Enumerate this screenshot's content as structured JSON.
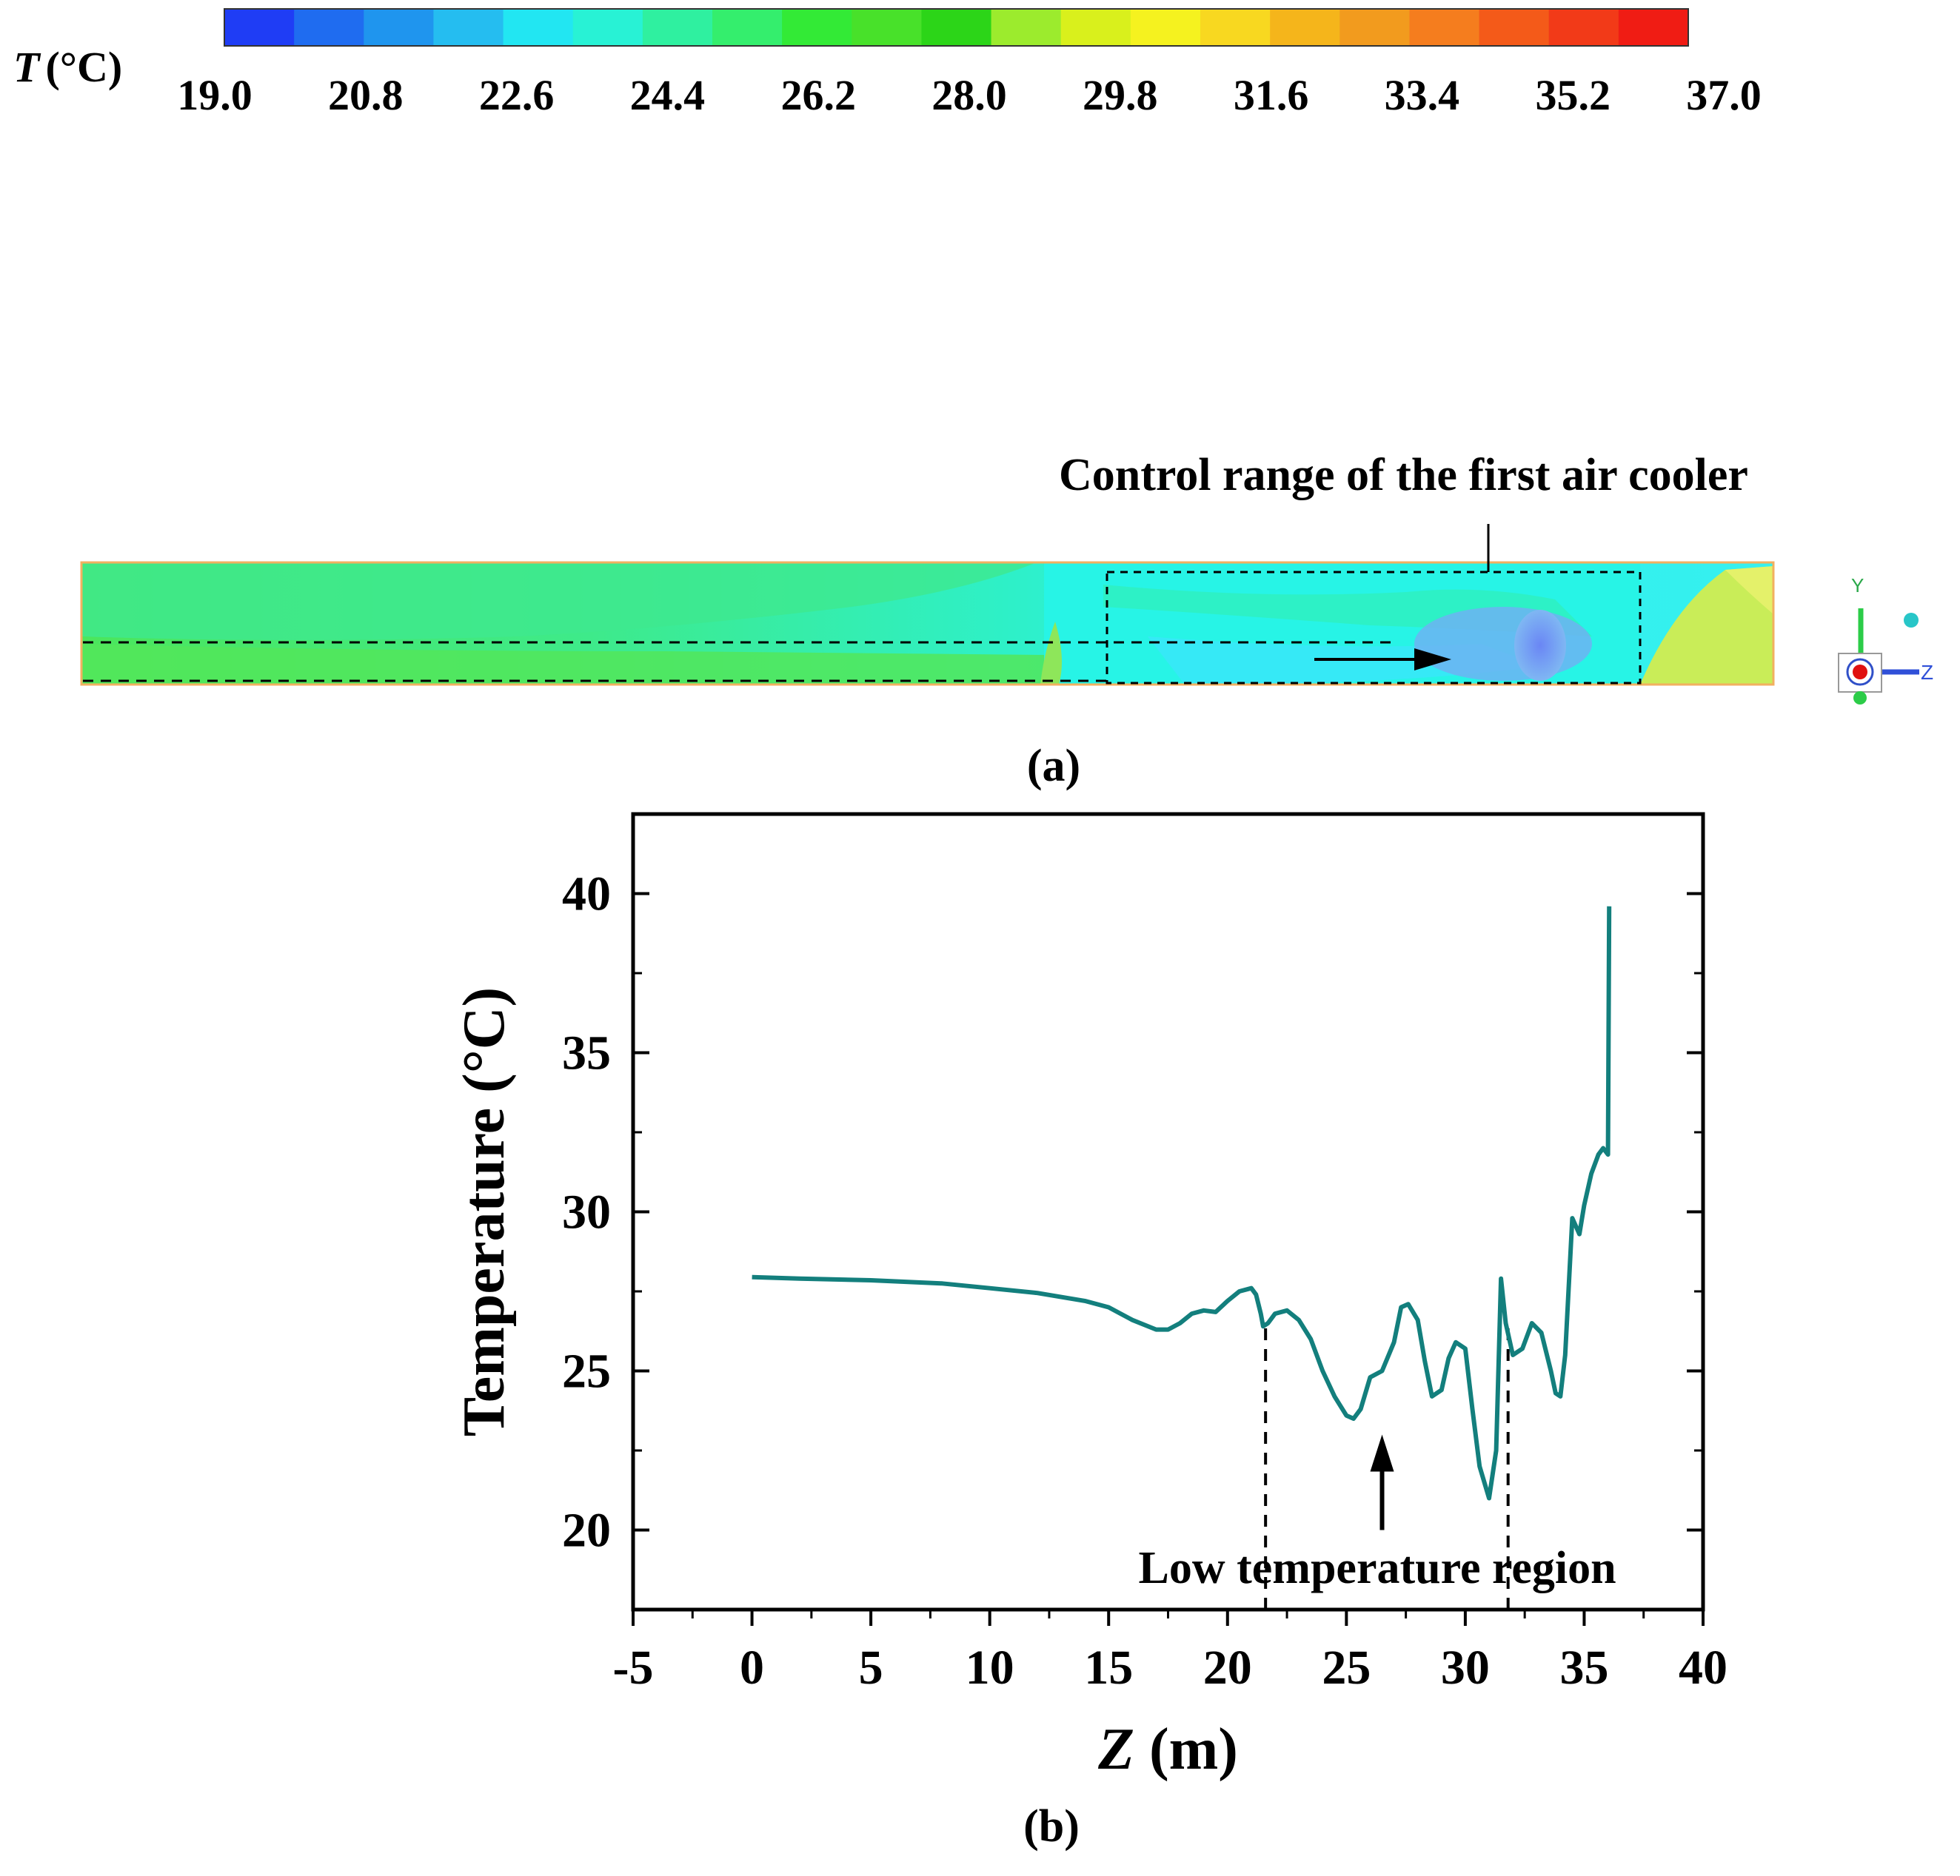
{
  "colorbar": {
    "symbol": "T",
    "unit": "(°C)",
    "ticks": [
      "19.0",
      "20.8",
      "22.6",
      "24.4",
      "26.2",
      "28.0",
      "29.8",
      "31.6",
      "33.4",
      "35.2",
      "37.0"
    ],
    "colors": [
      "#1f3df5",
      "#1f6cf0",
      "#1f95ee",
      "#25bdf0",
      "#22e6f2",
      "#28f2d5",
      "#2ff0a0",
      "#34ee6d",
      "#33ea36",
      "#48e12a",
      "#2cd518",
      "#9ceb2d",
      "#d9f01c",
      "#f5f21f",
      "#f8d820",
      "#f5b51b",
      "#f29b1e",
      "#f57d1e",
      "#f45a19",
      "#f23a18",
      "#f01c14"
    ]
  },
  "contour": {
    "annotation": "Control range of the first air cooler",
    "axis_y_label": "Y",
    "axis_z_label": "Z",
    "colors": {
      "base_green": "#46e85d",
      "cyan": "#24f5df",
      "light_cyan": "#3ff0f4",
      "blue_patch": "#6d8cf4",
      "yellow_green": "#c9ed58",
      "border_orange": "#f2b060"
    }
  },
  "panel_a_label": "(a)",
  "panel_b_label": "(b)",
  "chart_data": {
    "type": "line",
    "title": "",
    "xlabel": "Z (m)",
    "xlabel_italic_part": "Z",
    "xlabel_unit": "(m)",
    "ylabel": "Temperature (°C)",
    "xlim": [
      -5,
      40
    ],
    "ylim": [
      17.5,
      42.5
    ],
    "xticks": [
      -5,
      0,
      5,
      10,
      15,
      20,
      25,
      30,
      35,
      40
    ],
    "yticks": [
      20,
      25,
      30,
      35,
      40
    ],
    "line_color": "#137f7d",
    "series": [
      {
        "name": "Temperature",
        "x": [
          0,
          2,
          5,
          8,
          10,
          12,
          14,
          15,
          16,
          17,
          17.5,
          18,
          18.5,
          19,
          19.5,
          20,
          20.5,
          21,
          21.2,
          21.4,
          21.5,
          21.7,
          22,
          22.5,
          23,
          23.5,
          24,
          24.5,
          25,
          25.3,
          25.6,
          26,
          26.5,
          27,
          27.3,
          27.6,
          28,
          28.3,
          28.6,
          29,
          29.3,
          29.6,
          30,
          30.3,
          30.6,
          31,
          31.3,
          31.5,
          31.7,
          32,
          32.4,
          32.8,
          33.2,
          33.6,
          33.8,
          34,
          34.2,
          34.5,
          34.8,
          35,
          35.3,
          35.6,
          35.8,
          36,
          36.05
        ],
        "y": [
          27.95,
          27.9,
          27.85,
          27.75,
          27.6,
          27.45,
          27.2,
          27.0,
          26.6,
          26.3,
          26.3,
          26.5,
          26.8,
          26.9,
          26.85,
          27.2,
          27.5,
          27.6,
          27.4,
          26.8,
          26.4,
          26.5,
          26.8,
          26.9,
          26.6,
          26.0,
          25.0,
          24.2,
          23.6,
          23.5,
          23.8,
          24.8,
          25.0,
          25.9,
          27.0,
          27.1,
          26.6,
          25.3,
          24.2,
          24.4,
          25.4,
          25.9,
          25.7,
          23.8,
          22.0,
          21.0,
          22.5,
          27.9,
          26.5,
          25.5,
          25.7,
          26.5,
          26.2,
          25.0,
          24.3,
          24.2,
          25.5,
          29.8,
          29.3,
          30.2,
          31.2,
          31.8,
          32.0,
          31.8,
          39.6
        ]
      }
    ],
    "vlines": [
      21.6,
      31.8
    ],
    "annotations": [
      {
        "text": "Low temperature region",
        "x": 26.3,
        "y": 18.8
      }
    ],
    "arrow": {
      "x": 26.5,
      "from_y": 20.0,
      "to_y": 23.0
    },
    "grid": false,
    "legend": "none"
  }
}
